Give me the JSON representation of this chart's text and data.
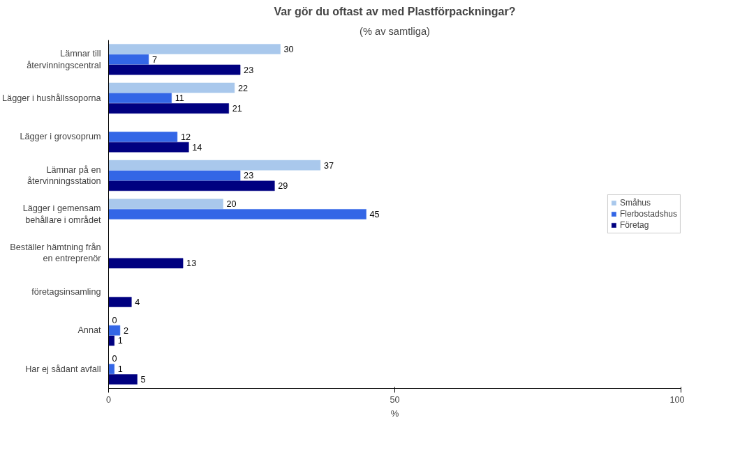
{
  "chart_data": {
    "type": "bar",
    "orientation": "horizontal",
    "title": "Var gör du oftast av med Plastförpackningar?",
    "subtitle": "(% av samtliga)",
    "xlabel": "%",
    "categories": [
      "Lämnar till återvinningscentral",
      "Lägger i hushållssoporna",
      "Lägger i grovsoprum",
      "Lämnar på en återvinningsstation",
      "Lägger i gemensam behållare i området",
      "Beställer hämtning från en entreprenör",
      "företagsinsamling",
      "Annat",
      "Har ej sådant avfall"
    ],
    "series": [
      {
        "name": "Småhus",
        "color": "#a9c8ec",
        "values": [
          30,
          22,
          null,
          37,
          20,
          null,
          null,
          0,
          0
        ]
      },
      {
        "name": "Flerbostadshus",
        "color": "#3366e6",
        "values": [
          7,
          11,
          12,
          23,
          45,
          null,
          null,
          2,
          1
        ]
      },
      {
        "name": "Företag",
        "color": "#000080",
        "values": [
          23,
          21,
          14,
          29,
          null,
          13,
          4,
          1,
          5
        ]
      }
    ],
    "xlim": [
      0,
      100
    ],
    "xticks": [
      0,
      50,
      100
    ],
    "data_labels": true,
    "grid": false,
    "legend": "right"
  }
}
